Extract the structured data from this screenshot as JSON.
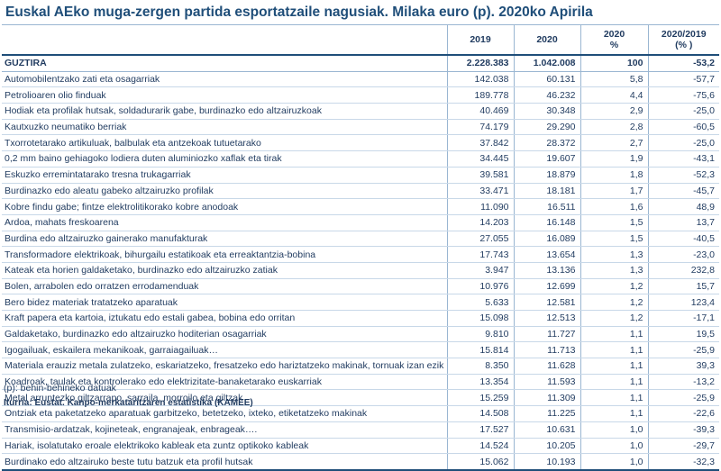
{
  "title": "Euskal AEko muga-zergen partida esportatzaile nagusiak. Milaka euro (p). 2020ko Apirila",
  "columns": [
    "2019",
    "2020",
    "2020 %",
    "2020/2019 (% )"
  ],
  "columns_lines": [
    [
      "2019"
    ],
    [
      "2020"
    ],
    [
      "2020",
      "%"
    ],
    [
      "2020/2019",
      "(% )"
    ]
  ],
  "total": {
    "label": "GUZTIRA",
    "v2019": "2.228.383",
    "v2020": "1.042.008",
    "pct": "100",
    "change": "-53,2"
  },
  "rows": [
    {
      "label": "Automobilentzako zati eta osagarriak",
      "v2019": "142.038",
      "v2020": "60.131",
      "pct": "5,8",
      "change": "-57,7"
    },
    {
      "label": "Petrolioaren olio finduak",
      "v2019": "189.778",
      "v2020": "46.232",
      "pct": "4,4",
      "change": "-75,6"
    },
    {
      "label": "Hodiak eta profilak hutsak, soldadurarik gabe, burdinazko edo altzairuzkoak",
      "v2019": "40.469",
      "v2020": "30.348",
      "pct": "2,9",
      "change": "-25,0"
    },
    {
      "label": "Kautxuzko neumatiko berriak",
      "v2019": "74.179",
      "v2020": "29.290",
      "pct": "2,8",
      "change": "-60,5"
    },
    {
      "label": "Txorrotetarako artikuluak, balbulak eta antzekoak tutuetarako",
      "v2019": "37.842",
      "v2020": "28.372",
      "pct": "2,7",
      "change": "-25,0"
    },
    {
      "label": "0,2 mm baino gehiagoko lodiera duten aluminiozko xaflak eta tirak",
      "v2019": "34.445",
      "v2020": "19.607",
      "pct": "1,9",
      "change": "-43,1"
    },
    {
      "label": "Eskuzko erremintatarako tresna trukagarriak",
      "v2019": "39.581",
      "v2020": "18.879",
      "pct": "1,8",
      "change": "-52,3"
    },
    {
      "label": "Burdinazko edo aleatu gabeko altzairuzko profilak",
      "v2019": "33.471",
      "v2020": "18.181",
      "pct": "1,7",
      "change": "-45,7"
    },
    {
      "label": "Kobre findu gabe; fintze elektrolitikorako kobre anodoak",
      "v2019": "11.090",
      "v2020": "16.511",
      "pct": "1,6",
      "change": "48,9"
    },
    {
      "label": "Ardoa, mahats freskoarena",
      "v2019": "14.203",
      "v2020": "16.148",
      "pct": "1,5",
      "change": "13,7"
    },
    {
      "label": "Burdina edo altzairuzko gainerako manufakturak",
      "v2019": "27.055",
      "v2020": "16.089",
      "pct": "1,5",
      "change": "-40,5"
    },
    {
      "label": "Transformadore elektrikoak, bihurgailu estatikoak eta erreaktantzia-bobina",
      "v2019": "17.743",
      "v2020": "13.654",
      "pct": "1,3",
      "change": "-23,0"
    },
    {
      "label": "Kateak eta horien galdaketako, burdinazko edo altzairuzko zatiak",
      "v2019": "3.947",
      "v2020": "13.136",
      "pct": "1,3",
      "change": "232,8"
    },
    {
      "label": "Bolen, arrabolen edo orratzen errodamenduak",
      "v2019": "10.976",
      "v2020": "12.699",
      "pct": "1,2",
      "change": "15,7"
    },
    {
      "label": "Bero bidez materiak tratatzeko aparatuak",
      "v2019": "5.633",
      "v2020": "12.581",
      "pct": "1,2",
      "change": "123,4"
    },
    {
      "label": "Kraft papera eta kartoia, iztukatu edo estali gabea, bobina edo orritan",
      "v2019": "15.098",
      "v2020": "12.513",
      "pct": "1,2",
      "change": "-17,1"
    },
    {
      "label": "Galdaketako, burdinazko edo altzairuzko hoditerian osagarriak",
      "v2019": "9.810",
      "v2020": "11.727",
      "pct": "1,1",
      "change": "19,5"
    },
    {
      "label": "Igogailuak, eskailera mekanikoak, garraiagailuak…",
      "v2019": "15.814",
      "v2020": "11.713",
      "pct": "1,1",
      "change": "-25,9"
    },
    {
      "label": "Materiala erauziz metala zulatzeko, eskariatzeko, fresatzeko edo hariztatzeko makinak, tornuak izan ezik",
      "v2019": "8.350",
      "v2020": "11.628",
      "pct": "1,1",
      "change": "39,3"
    },
    {
      "label": "Koadroak, taulak eta kontrolerako edo elektrizitate-banaketarako euskarriak",
      "v2019": "13.354",
      "v2020": "11.593",
      "pct": "1,1",
      "change": "-13,2"
    },
    {
      "label": "Metal arruntezko giltzarrapo, sarraila, morroilo eta giltzak",
      "v2019": "15.259",
      "v2020": "11.309",
      "pct": "1,1",
      "change": "-25,9"
    },
    {
      "label": "Ontziak eta paketatzeko aparatuak garbitzeko, betetzeko, ixteko, etiketatzeko makinak",
      "v2019": "14.508",
      "v2020": "11.225",
      "pct": "1,1",
      "change": "-22,6"
    },
    {
      "label": "Transmisio-ardatzak, kojineteak, engranajeak, enbrageak….",
      "v2019": "17.527",
      "v2020": "10.631",
      "pct": "1,0",
      "change": "-39,3"
    },
    {
      "label": "Hariak, isolatutako eroale elektrikoko kableak eta zuntz optikoko kableak",
      "v2019": "14.524",
      "v2020": "10.205",
      "pct": "1,0",
      "change": "-29,7"
    },
    {
      "label": "Burdinako edo altzairuko beste tutu batzuk eta profil hutsak",
      "v2019": "15.062",
      "v2020": "10.193",
      "pct": "1,0",
      "change": "-32,3"
    }
  ],
  "footnote": "(p): behin-behineko datuak",
  "source": "Iturria: Eustat. Kanpo-merkataritzaren estatistika (KAMEE)"
}
